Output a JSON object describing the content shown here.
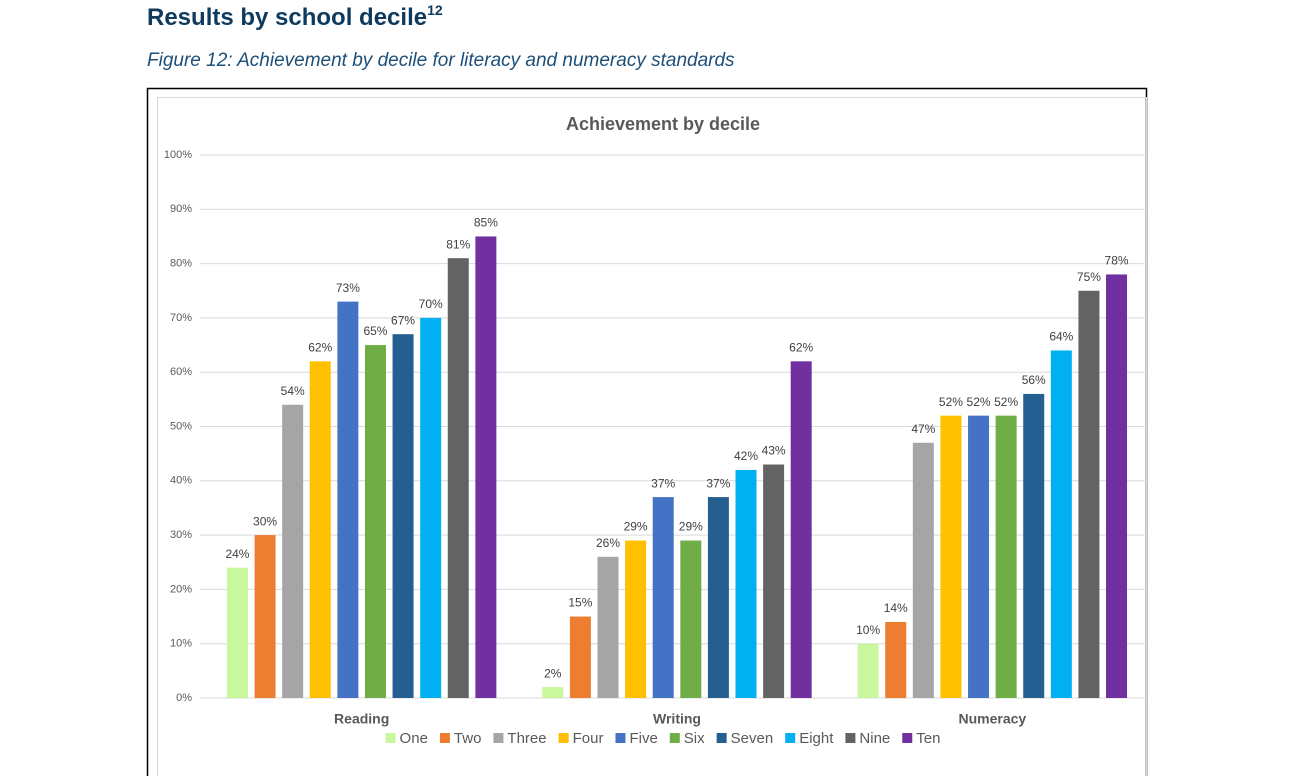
{
  "header": {
    "title": "Results by school decile",
    "superscript": "12",
    "caption": "Figure 12: Achievement by decile for literacy and numeracy standards"
  },
  "chart_data": {
    "type": "bar",
    "title": "Achievement by decile",
    "categories": [
      "Reading",
      "Writing",
      "Numeracy"
    ],
    "ylim": [
      0,
      100
    ],
    "yticks": [
      {
        "value": 0,
        "label": "0%"
      },
      {
        "value": 10,
        "label": "10%"
      },
      {
        "value": 20,
        "label": "20%"
      },
      {
        "value": 30,
        "label": "30%"
      },
      {
        "value": 40,
        "label": "40%"
      },
      {
        "value": 50,
        "label": "50%"
      },
      {
        "value": 60,
        "label": "60%"
      },
      {
        "value": 70,
        "label": "70%"
      },
      {
        "value": 80,
        "label": "80%"
      },
      {
        "value": 90,
        "label": "90%"
      },
      {
        "value": 100,
        "label": "100%"
      }
    ],
    "grid": true,
    "legend": "bottom",
    "series": [
      {
        "name": "One",
        "color": "#c9f79d",
        "values": [
          24,
          2,
          10
        ],
        "value_labels": [
          "24%",
          "2%",
          "10%"
        ]
      },
      {
        "name": "Two",
        "color": "#ed7d31",
        "values": [
          30,
          15,
          14
        ],
        "value_labels": [
          "30%",
          "15%",
          "14%"
        ]
      },
      {
        "name": "Three",
        "color": "#a5a5a5",
        "values": [
          54,
          26,
          47
        ],
        "value_labels": [
          "54%",
          "26%",
          "47%"
        ]
      },
      {
        "name": "Four",
        "color": "#ffc000",
        "values": [
          62,
          29,
          52
        ],
        "value_labels": [
          "62%",
          "29%",
          "52%"
        ]
      },
      {
        "name": "Five",
        "color": "#4472c4",
        "values": [
          73,
          37,
          52
        ],
        "value_labels": [
          "73%",
          "37%",
          "52%"
        ]
      },
      {
        "name": "Six",
        "color": "#70ad47",
        "values": [
          65,
          29,
          52
        ],
        "value_labels": [
          "65%",
          "29%",
          "52%"
        ]
      },
      {
        "name": "Seven",
        "color": "#255e91",
        "values": [
          67,
          37,
          56
        ],
        "value_labels": [
          "67%",
          "37%",
          "56%"
        ]
      },
      {
        "name": "Eight",
        "color": "#00b0f0",
        "values": [
          70,
          42,
          64
        ],
        "value_labels": [
          "70%",
          "42%",
          "64%"
        ]
      },
      {
        "name": "Nine",
        "color": "#636363",
        "values": [
          81,
          43,
          75
        ],
        "value_labels": [
          "81%",
          "43%",
          "75%"
        ]
      },
      {
        "name": "Ten",
        "color": "#7030a0",
        "values": [
          85,
          62,
          78
        ],
        "value_labels": [
          "85%",
          "62%",
          "78%"
        ]
      }
    ]
  }
}
